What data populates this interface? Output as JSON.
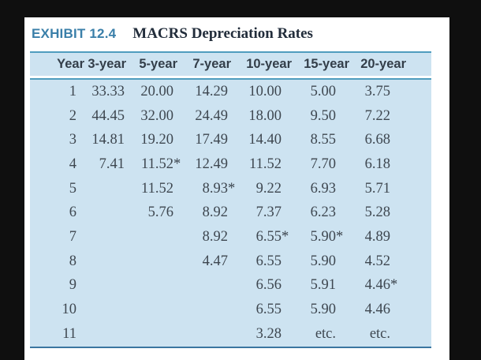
{
  "exhibit": {
    "label": "EXHIBIT 12.4",
    "title": "MACRS Depreciation Rates"
  },
  "table": {
    "columns": [
      "Year",
      "3-year",
      "5-year",
      "7-year",
      "10-year",
      "15-year",
      "20-year"
    ],
    "rows": [
      [
        "1",
        "33.33",
        "20.00",
        "14.29",
        "10.00",
        "5.00",
        "3.75"
      ],
      [
        "2",
        "44.45",
        "32.00",
        "24.49",
        "18.00",
        "9.50",
        "7.22"
      ],
      [
        "3",
        "14.81",
        "19.20",
        "17.49",
        "14.40",
        "8.55",
        "6.68"
      ],
      [
        "4",
        "7.41",
        "11.52*",
        "12.49",
        "11.52",
        "7.70",
        "6.18"
      ],
      [
        "5",
        "",
        "11.52",
        "8.93*",
        "9.22",
        "6.93",
        "5.71"
      ],
      [
        "6",
        "",
        "5.76",
        "8.92",
        "7.37",
        "6.23",
        "5.28"
      ],
      [
        "7",
        "",
        "",
        "8.92",
        "6.55*",
        "5.90*",
        "4.89"
      ],
      [
        "8",
        "",
        "",
        "4.47",
        "6.55",
        "5.90",
        "4.52"
      ],
      [
        "9",
        "",
        "",
        "",
        "6.56",
        "5.91",
        "4.46*"
      ],
      [
        "10",
        "",
        "",
        "",
        "6.55",
        "5.90",
        "4.46"
      ],
      [
        "11",
        "",
        "",
        "",
        "3.28",
        "etc.",
        "etc."
      ]
    ]
  },
  "colors": {
    "frame": "#0f0f0f",
    "table_bg": "#cde3f1",
    "rule_line": "#4f9dbe",
    "bottom_line": "#3b76a0",
    "exhibit_label": "#3a7fa9",
    "title_text": "#222d3b"
  }
}
